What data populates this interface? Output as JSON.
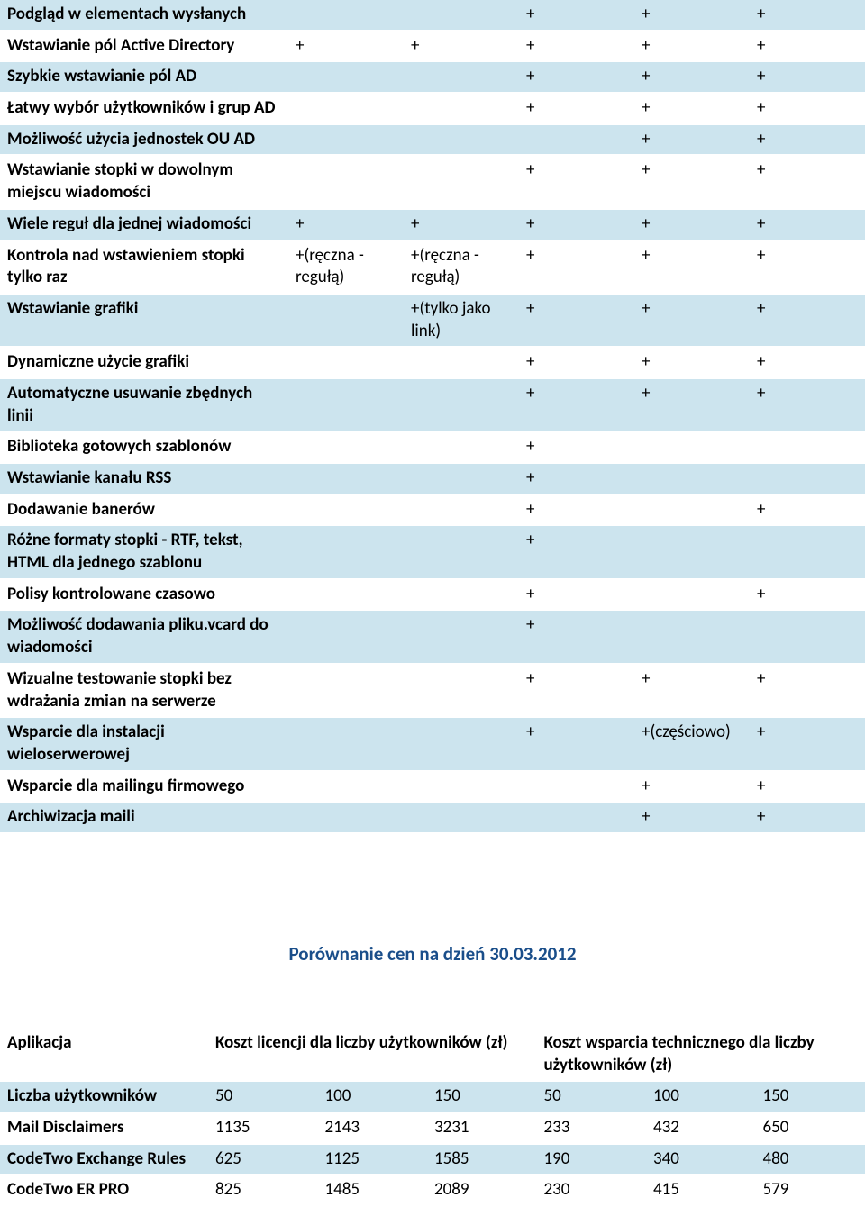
{
  "featureTable": {
    "rowColors": {
      "even": "#cce4ee",
      "odd": "#ffffff"
    },
    "textColor": "#000000",
    "rows": [
      {
        "label": "Podgląd w elementach wysłanych",
        "cells": [
          "",
          "",
          "+",
          "+",
          "+"
        ]
      },
      {
        "label": "Wstawianie pól Active Directory",
        "cells": [
          "+",
          "+",
          "+",
          "+",
          "+"
        ]
      },
      {
        "label": "Szybkie wstawianie pól AD",
        "cells": [
          "",
          "",
          "+",
          "+",
          "+"
        ]
      },
      {
        "label": "Łatwy wybór użytkowników i grup AD",
        "cells": [
          "",
          "",
          "+",
          "+",
          "+"
        ]
      },
      {
        "label": "Możliwość użycia jednostek OU AD",
        "cells": [
          "",
          "",
          "",
          "+",
          "+"
        ]
      },
      {
        "label": "Wstawianie stopki w dowolnym miejscu wiadomości",
        "cells": [
          "",
          "",
          "+",
          "+",
          "+"
        ]
      },
      {
        "label": "Wiele reguł dla jednej wiadomości",
        "cells": [
          "+",
          "+",
          "+",
          "+",
          "+"
        ]
      },
      {
        "label": "Kontrola nad wstawieniem stopki tylko raz",
        "cells": [
          "+(ręczna - regułą)",
          "+(ręczna - regułą)",
          "+",
          "+",
          "+"
        ]
      },
      {
        "label": "Wstawianie grafiki",
        "cells": [
          "",
          "+(tylko jako link)",
          "+",
          "+",
          "+"
        ]
      },
      {
        "label": "Dynamiczne użycie grafiki",
        "cells": [
          "",
          "",
          "+",
          "+",
          "+"
        ]
      },
      {
        "label": "Automatyczne usuwanie zbędnych linii",
        "cells": [
          "",
          "",
          "+",
          "+",
          "+"
        ]
      },
      {
        "label": "Biblioteka gotowych szablonów",
        "cells": [
          "",
          "",
          "+",
          "",
          ""
        ]
      },
      {
        "label": "Wstawianie kanału RSS",
        "cells": [
          "",
          "",
          "+",
          "",
          ""
        ]
      },
      {
        "label": "Dodawanie banerów",
        "cells": [
          "",
          "",
          "+",
          "",
          "+"
        ]
      },
      {
        "label": "Różne formaty stopki - RTF, tekst, HTML dla jednego szablonu",
        "cells": [
          "",
          "",
          "+",
          "",
          ""
        ]
      },
      {
        "label": "Polisy kontrolowane czasowo",
        "cells": [
          "",
          "",
          "+",
          "",
          "+"
        ]
      },
      {
        "label": "Możliwość dodawania pliku.vcard do wiadomości",
        "cells": [
          "",
          "",
          "+",
          "",
          ""
        ]
      },
      {
        "label": "Wizualne testowanie stopki bez wdrażania zmian na serwerze",
        "cells": [
          "",
          "",
          "+",
          "+",
          "+"
        ]
      },
      {
        "label": "Wsparcie dla instalacji wieloserwerowej",
        "cells": [
          "",
          "",
          "+",
          "+(częściowo)",
          "+"
        ]
      },
      {
        "label": "Wsparcie dla mailingu firmowego",
        "cells": [
          "",
          "",
          "",
          "+",
          "+"
        ]
      },
      {
        "label": "Archiwizacja maili",
        "cells": [
          "",
          "",
          "",
          "+",
          "+"
        ]
      }
    ]
  },
  "sectionTitle": "Porównanie cen na dzień 30.03.2012",
  "sectionTitleColor": "#1a4e8a",
  "priceTable": {
    "headerRow": {
      "label": "Aplikacja",
      "group1": "Koszt licencji dla liczby użytkowników (zł)",
      "group2": "Koszt wsparcia technicznego dla liczby użytkowników (zł)"
    },
    "rows": [
      {
        "label": "Liczba użytkowników",
        "cells": [
          "50",
          "100",
          "150",
          "50",
          "100",
          "150"
        ]
      },
      {
        "label": "Mail Disclaimers",
        "cells": [
          "1135",
          "2143",
          "3231",
          "233",
          "432",
          "650"
        ]
      },
      {
        "label": "CodeTwo Exchange Rules",
        "cells": [
          "625",
          "1125",
          "1585",
          "190",
          "340",
          "480"
        ]
      },
      {
        "label": "CodeTwo ER PRO",
        "cells": [
          "825",
          "1485",
          "2089",
          "230",
          "415",
          "579"
        ]
      }
    ]
  }
}
